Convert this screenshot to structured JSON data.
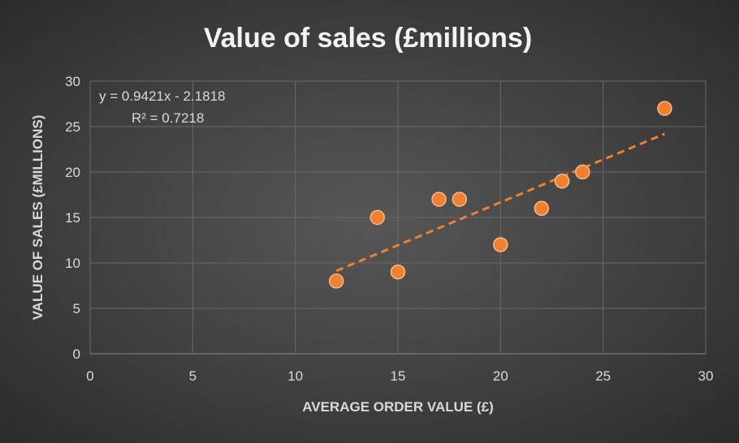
{
  "chart_data": {
    "type": "scatter",
    "title": "Value of sales (£millions)",
    "xlabel": "AVERAGE ORDER VALUE (£)",
    "ylabel": "VALUE OF SALES (£MILLIONS)",
    "xlim": [
      0,
      30
    ],
    "ylim": [
      0,
      30
    ],
    "xticks": [
      0,
      5,
      10,
      15,
      20,
      25,
      30
    ],
    "yticks": [
      0,
      5,
      10,
      15,
      20,
      25,
      30
    ],
    "grid": true,
    "points": [
      {
        "x": 12,
        "y": 8
      },
      {
        "x": 14,
        "y": 15
      },
      {
        "x": 15,
        "y": 9
      },
      {
        "x": 17,
        "y": 17
      },
      {
        "x": 18,
        "y": 17
      },
      {
        "x": 20,
        "y": 12
      },
      {
        "x": 22,
        "y": 16
      },
      {
        "x": 23,
        "y": 19
      },
      {
        "x": 24,
        "y": 20
      },
      {
        "x": 28,
        "y": 27
      }
    ],
    "trendline": {
      "type": "linear",
      "slope": 0.9421,
      "intercept": -2.1818,
      "x_range": [
        12,
        28
      ],
      "style": "dashed"
    },
    "equation_label": "y = 0.9421x - 2.1818",
    "r2_label": "R² = 0.7218",
    "colors": {
      "points": "#f0802c",
      "trendline": "#f0802c",
      "grid": "#6a6a6a",
      "text": "#d9d9d9"
    }
  }
}
